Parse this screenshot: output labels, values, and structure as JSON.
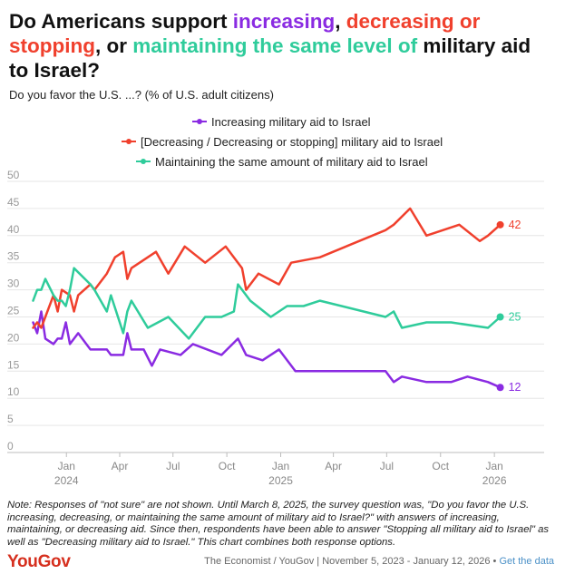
{
  "title": {
    "part1": "Do Americans support ",
    "inc": "increasing",
    "comma1": ", ",
    "dec": "decreasing or stopping",
    "part2": ", or ",
    "main": "maintaining the same level of",
    "part3": " military aid to Israel?"
  },
  "subtitle": "Do you favor the U.S. ...? (% of U.S. adult citizens)",
  "colors": {
    "increasing": "#8a2be2",
    "decreasing": "#f0402d",
    "maintaining": "#2fcc9b"
  },
  "note": "Note: Responses of \"not sure\" are not shown. Until March 8, 2025, the survey question was, \"Do you favor the U.S. increasing, decreasing, or maintaining the same amount of military aid to Israel?\" with answers of increasing, maintaining, or decreasing aid. Since then, respondents have been able to answer \"Stopping all military aid to Israel\" as well as \"Decreasing military aid to Israel.\" This chart combines both response options.",
  "footer": {
    "logo": "YouGov",
    "source": "The Economist / YouGov | November 5, 2023 - January 12, 2026 • ",
    "link": "Get the data"
  },
  "chart_data": {
    "type": "line",
    "title": "",
    "xlabel": "",
    "ylabel": "",
    "ylim": [
      0,
      50
    ],
    "yticks": [
      0,
      5,
      10,
      15,
      20,
      25,
      30,
      35,
      40,
      45,
      50
    ],
    "xlim": [
      "2023-10-26",
      "2026-01-24"
    ],
    "xticks": [
      {
        "date": "2024-01-01",
        "label": "Jan",
        "year": "2024"
      },
      {
        "date": "2024-04-01",
        "label": "Apr"
      },
      {
        "date": "2024-07-01",
        "label": "Jul"
      },
      {
        "date": "2024-10-01",
        "label": "Oct"
      },
      {
        "date": "2025-01-01",
        "label": "Jan",
        "year": "2025"
      },
      {
        "date": "2025-04-01",
        "label": "Apr"
      },
      {
        "date": "2025-07-01",
        "label": "Jul"
      },
      {
        "date": "2025-10-01",
        "label": "Oct"
      },
      {
        "date": "2026-01-01",
        "label": "Jan",
        "year": "2026"
      }
    ],
    "grid": true,
    "legend_position": "top-center",
    "series": [
      {
        "name": "Increasing military aid to Israel",
        "key": "increasing",
        "end_label": "12",
        "points": [
          [
            "2023-11-05",
            24
          ],
          [
            "2023-11-12",
            22
          ],
          [
            "2023-11-19",
            26
          ],
          [
            "2023-11-26",
            21
          ],
          [
            "2023-12-10",
            20
          ],
          [
            "2023-12-17",
            21
          ],
          [
            "2023-12-24",
            21
          ],
          [
            "2023-12-31",
            24
          ],
          [
            "2024-01-07",
            20
          ],
          [
            "2024-01-21",
            22
          ],
          [
            "2024-02-11",
            19
          ],
          [
            "2024-03-10",
            19
          ],
          [
            "2024-03-17",
            18
          ],
          [
            "2024-04-07",
            18
          ],
          [
            "2024-04-14",
            22
          ],
          [
            "2024-04-21",
            19
          ],
          [
            "2024-05-12",
            19
          ],
          [
            "2024-05-26",
            16
          ],
          [
            "2024-06-09",
            19
          ],
          [
            "2024-07-14",
            18
          ],
          [
            "2024-08-04",
            20
          ],
          [
            "2024-09-22",
            18
          ],
          [
            "2024-10-20",
            21
          ],
          [
            "2024-11-03",
            18
          ],
          [
            "2024-12-01",
            17
          ],
          [
            "2024-12-29",
            19
          ],
          [
            "2025-01-26",
            15
          ],
          [
            "2025-04-13",
            15
          ],
          [
            "2025-06-29",
            15
          ],
          [
            "2025-07-13",
            13
          ],
          [
            "2025-07-27",
            14
          ],
          [
            "2025-09-07",
            13
          ],
          [
            "2025-10-19",
            13
          ],
          [
            "2025-11-16",
            14
          ],
          [
            "2025-12-21",
            13
          ],
          [
            "2026-01-11",
            12
          ]
        ]
      },
      {
        "name": "[Decreasing / Decreasing or stopping] military aid to Israel",
        "key": "decreasing",
        "end_label": "42",
        "points": [
          [
            "2023-11-05",
            23
          ],
          [
            "2023-11-12",
            24
          ],
          [
            "2023-11-19",
            23
          ],
          [
            "2023-11-26",
            25
          ],
          [
            "2023-12-10",
            29
          ],
          [
            "2023-12-17",
            26
          ],
          [
            "2023-12-24",
            30
          ],
          [
            "2024-01-07",
            29
          ],
          [
            "2024-01-14",
            26
          ],
          [
            "2024-01-21",
            29
          ],
          [
            "2024-02-11",
            31
          ],
          [
            "2024-02-18",
            30
          ],
          [
            "2024-03-10",
            33
          ],
          [
            "2024-03-24",
            36
          ],
          [
            "2024-04-07",
            37
          ],
          [
            "2024-04-14",
            32
          ],
          [
            "2024-04-21",
            34
          ],
          [
            "2024-06-02",
            37
          ],
          [
            "2024-06-23",
            33
          ],
          [
            "2024-07-21",
            38
          ],
          [
            "2024-08-25",
            35
          ],
          [
            "2024-09-29",
            38
          ],
          [
            "2024-10-27",
            34
          ],
          [
            "2024-11-03",
            30
          ],
          [
            "2024-11-24",
            33
          ],
          [
            "2024-12-29",
            31
          ],
          [
            "2025-01-19",
            35
          ],
          [
            "2025-03-09",
            36
          ],
          [
            "2025-06-29",
            41
          ],
          [
            "2025-07-13",
            42
          ],
          [
            "2025-08-10",
            45
          ],
          [
            "2025-09-07",
            40
          ],
          [
            "2025-11-02",
            42
          ],
          [
            "2025-12-07",
            39
          ],
          [
            "2025-12-21",
            40
          ],
          [
            "2026-01-11",
            42
          ]
        ]
      },
      {
        "name": "Maintaining the same amount of military aid to Israel",
        "key": "maintaining",
        "end_label": "25",
        "points": [
          [
            "2023-11-05",
            28
          ],
          [
            "2023-11-12",
            30
          ],
          [
            "2023-11-19",
            30
          ],
          [
            "2023-11-26",
            32
          ],
          [
            "2023-12-10",
            29
          ],
          [
            "2023-12-17",
            28
          ],
          [
            "2023-12-24",
            28
          ],
          [
            "2023-12-31",
            27
          ],
          [
            "2024-01-07",
            30
          ],
          [
            "2024-01-14",
            34
          ],
          [
            "2024-02-11",
            31
          ],
          [
            "2024-02-18",
            30
          ],
          [
            "2024-03-10",
            26
          ],
          [
            "2024-03-17",
            29
          ],
          [
            "2024-04-07",
            22
          ],
          [
            "2024-04-14",
            26
          ],
          [
            "2024-04-21",
            28
          ],
          [
            "2024-05-19",
            23
          ],
          [
            "2024-06-23",
            25
          ],
          [
            "2024-07-28",
            21
          ],
          [
            "2024-08-25",
            25
          ],
          [
            "2024-09-22",
            25
          ],
          [
            "2024-10-13",
            26
          ],
          [
            "2024-10-20",
            31
          ],
          [
            "2024-11-10",
            28
          ],
          [
            "2024-12-15",
            25
          ],
          [
            "2025-01-12",
            27
          ],
          [
            "2025-02-09",
            27
          ],
          [
            "2025-03-09",
            28
          ],
          [
            "2025-06-29",
            25
          ],
          [
            "2025-07-13",
            26
          ],
          [
            "2025-07-27",
            23
          ],
          [
            "2025-09-07",
            24
          ],
          [
            "2025-10-19",
            24
          ],
          [
            "2025-12-21",
            23
          ],
          [
            "2026-01-11",
            25
          ]
        ]
      }
    ]
  }
}
